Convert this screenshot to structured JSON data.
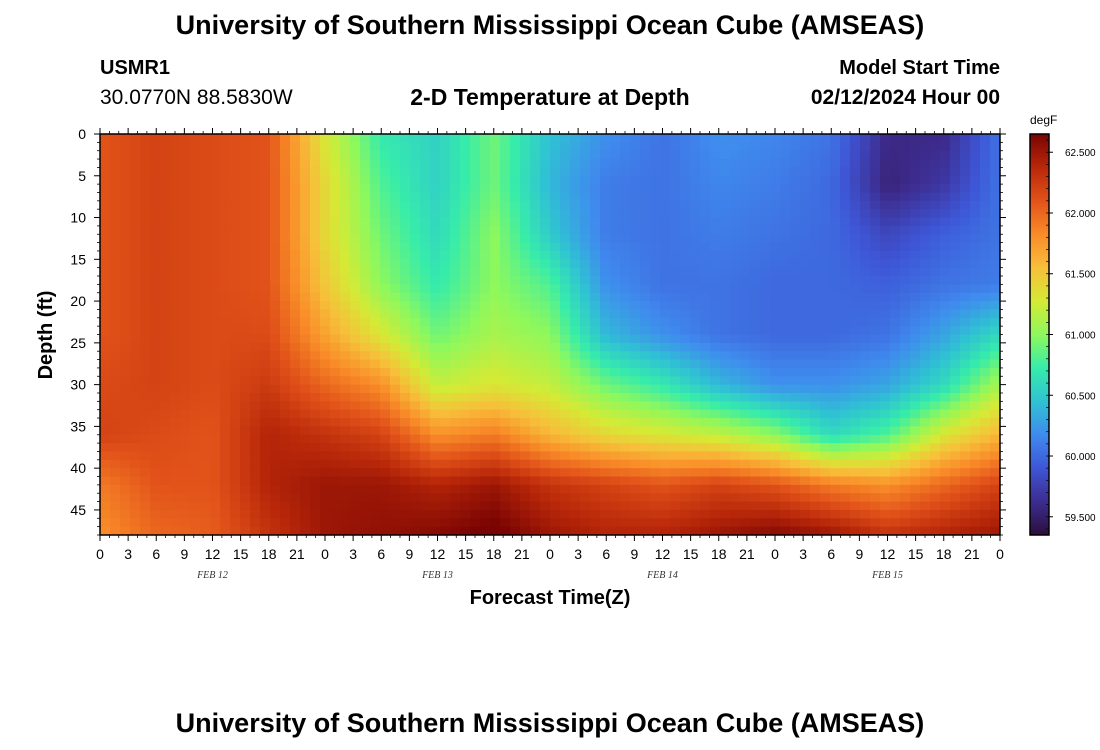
{
  "header": {
    "title": "University of Southern Mississippi Ocean Cube (AMSEAS)",
    "station": "USMR1",
    "coordinates": "30.0770N  88.5830W",
    "subtitle": "2-D Temperature at Depth",
    "model_start_label": "Model Start Time",
    "model_start_value": "02/12/2024 Hour 00"
  },
  "footer": {
    "title": "University of Southern Mississippi Ocean Cube (AMSEAS)"
  },
  "chart_data": {
    "type": "heatmap",
    "title": "2-D Temperature at Depth",
    "xlabel": "Forecast Time(Z)",
    "ylabel": "Depth (ft)",
    "x_hours_range": [
      0,
      96
    ],
    "y_depth_range": [
      0,
      48
    ],
    "x_tick_hours": [
      0,
      3,
      6,
      9,
      12,
      15,
      18,
      21,
      24,
      27,
      30,
      33,
      36,
      39,
      42,
      45,
      48,
      51,
      54,
      57,
      60,
      63,
      66,
      69,
      72,
      75,
      78,
      81,
      84,
      87,
      90,
      93,
      96
    ],
    "x_tick_labels": [
      "0",
      "3",
      "6",
      "9",
      "12",
      "15",
      "18",
      "21",
      "0",
      "3",
      "6",
      "9",
      "12",
      "15",
      "18",
      "21",
      "0",
      "3",
      "6",
      "9",
      "12",
      "15",
      "18",
      "21",
      "0",
      "3",
      "6",
      "9",
      "12",
      "15",
      "18",
      "21",
      "0"
    ],
    "day_labels": [
      {
        "label": "FEB 12",
        "hour": 12
      },
      {
        "label": "FEB 13",
        "hour": 36
      },
      {
        "label": "FEB 14",
        "hour": 60
      },
      {
        "label": "FEB 15",
        "hour": 84
      }
    ],
    "y_ticks": [
      0,
      5,
      10,
      15,
      20,
      25,
      30,
      35,
      40,
      45
    ],
    "colorbar": {
      "unit": "degF",
      "range": [
        59.35,
        62.65
      ],
      "tick_values": [
        59.5,
        60.0,
        60.5,
        61.0,
        61.5,
        62.0,
        62.5
      ],
      "tick_labels": [
        "59.500",
        "60.000",
        "60.500",
        "61.000",
        "61.500",
        "62.000",
        "62.500"
      ],
      "colors": [
        "#2b0f3d",
        "#3d2c8f",
        "#3e56d6",
        "#3f8bee",
        "#2fc2d3",
        "#37ecaa",
        "#8ef85c",
        "#d5ea35",
        "#f7bf3a",
        "#f98b28",
        "#e2531a",
        "#b82709",
        "#7a0403"
      ]
    },
    "grid_hours": [
      0,
      6,
      12,
      18,
      24,
      30,
      36,
      42,
      48,
      54,
      60,
      66,
      72,
      78,
      84,
      90,
      96
    ],
    "grid_depths": [
      0,
      6,
      12,
      18,
      24,
      30,
      36,
      42,
      48
    ],
    "temperature_degF": [
      [
        62.1,
        62.2,
        62.15,
        62.1,
        61.3,
        60.7,
        60.55,
        60.9,
        60.45,
        60.2,
        60.05,
        60.2,
        60.15,
        60.05,
        59.6,
        59.6,
        60.05
      ],
      [
        62.1,
        62.2,
        62.15,
        62.1,
        61.4,
        60.8,
        60.55,
        60.9,
        60.4,
        60.1,
        60.05,
        60.15,
        60.1,
        60.0,
        59.55,
        59.7,
        60.05
      ],
      [
        62.1,
        62.2,
        62.15,
        62.1,
        61.4,
        60.9,
        60.6,
        61.0,
        60.5,
        60.1,
        60.05,
        60.1,
        60.05,
        60.0,
        59.8,
        59.95,
        60.05
      ],
      [
        62.1,
        62.2,
        62.15,
        62.1,
        61.5,
        61.0,
        60.7,
        61.0,
        60.8,
        60.2,
        60.05,
        60.05,
        60.0,
        60.0,
        59.95,
        60.05,
        60.1
      ],
      [
        62.1,
        62.2,
        62.15,
        62.15,
        61.7,
        61.3,
        60.9,
        61.1,
        61.0,
        60.4,
        60.2,
        60.05,
        60.0,
        60.0,
        60.05,
        60.3,
        60.6
      ],
      [
        62.15,
        62.2,
        62.15,
        62.25,
        62.0,
        61.8,
        61.2,
        61.3,
        61.2,
        60.9,
        60.7,
        60.4,
        60.2,
        60.2,
        60.3,
        60.6,
        61.1
      ],
      [
        62.2,
        62.15,
        62.1,
        62.4,
        62.3,
        62.2,
        61.8,
        61.9,
        61.6,
        61.4,
        61.3,
        61.2,
        61.0,
        60.6,
        60.8,
        61.3,
        61.6
      ],
      [
        61.9,
        62.1,
        62.1,
        62.4,
        62.5,
        62.5,
        62.4,
        62.5,
        62.3,
        62.2,
        62.1,
        62.2,
        62.1,
        61.9,
        61.8,
        62.0,
        62.2
      ],
      [
        61.8,
        62.0,
        62.05,
        62.3,
        62.5,
        62.55,
        62.6,
        62.7,
        62.5,
        62.4,
        62.4,
        62.5,
        62.6,
        62.5,
        62.3,
        62.4,
        62.5
      ]
    ]
  }
}
